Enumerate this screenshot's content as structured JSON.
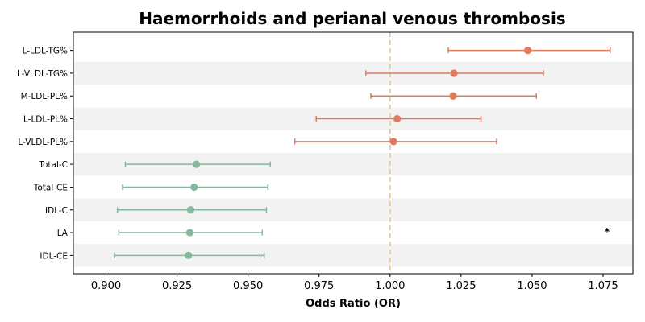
{
  "chart_data": {
    "type": "forest",
    "title": "Haemorrhoids and perianal venous thrombosis",
    "xlabel": "Odds Ratio (OR)",
    "ylabel": "",
    "xlim": [
      0.8885,
      1.0855
    ],
    "xticks": [
      "0.900",
      "0.925",
      "0.950",
      "0.975",
      "1.000",
      "1.025",
      "1.050",
      "1.075"
    ],
    "reference_line": 1.0,
    "row_stripes": true,
    "rows": [
      {
        "label": "L-LDL-TG%",
        "or": 1.0485,
        "lower": 1.0205,
        "upper": 1.0775,
        "color": "#e07b5f"
      },
      {
        "label": "L-VLDL-TG%",
        "or": 1.0225,
        "lower": 0.9915,
        "upper": 1.054,
        "color": "#e07b5f"
      },
      {
        "label": "M-LDL-PL%",
        "or": 1.0222,
        "lower": 0.9932,
        "upper": 1.0515,
        "color": "#e07b5f"
      },
      {
        "label": "L-LDL-PL%",
        "or": 1.0025,
        "lower": 0.974,
        "upper": 1.032,
        "color": "#e07b5f"
      },
      {
        "label": "L-VLDL-PL%",
        "or": 1.0012,
        "lower": 0.9665,
        "upper": 1.0375,
        "color": "#e07b5f"
      },
      {
        "label": "Total-C",
        "or": 0.9318,
        "lower": 0.9068,
        "upper": 0.9578,
        "color": "#85b89c"
      },
      {
        "label": "Total-CE",
        "or": 0.931,
        "lower": 0.9058,
        "upper": 0.957,
        "color": "#85b89c"
      },
      {
        "label": "IDL-C",
        "or": 0.9298,
        "lower": 0.904,
        "upper": 0.9565,
        "color": "#85b89c"
      },
      {
        "label": "LA",
        "or": 0.9295,
        "lower": 0.9045,
        "upper": 0.955,
        "color": "#85b89c",
        "annotation": "*"
      },
      {
        "label": "IDL-CE",
        "or": 0.929,
        "lower": 0.903,
        "upper": 0.9557,
        "color": "#85b89c"
      }
    ],
    "colors": {
      "positive": "#e07b5f",
      "negative": "#85b89c",
      "reference_line": "#f0c27a",
      "stripe": "#f2f2f2"
    }
  }
}
